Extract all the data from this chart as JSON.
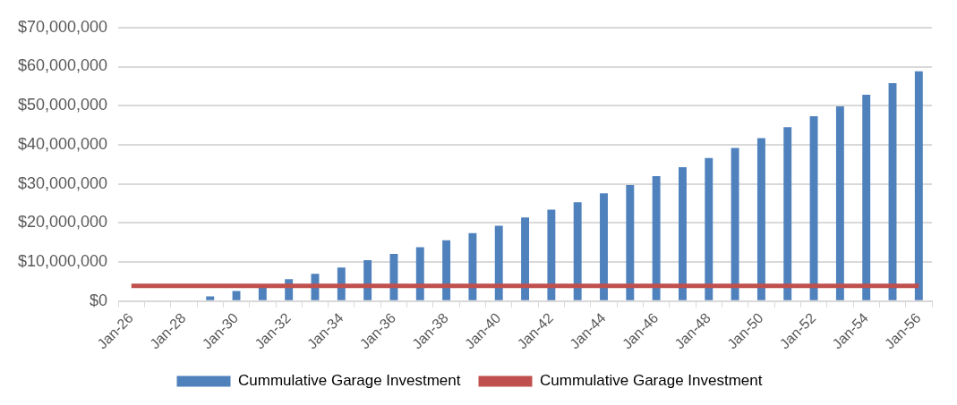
{
  "chart_data": {
    "type": "bar",
    "categories": [
      "Jan-26",
      null,
      "Jan-28",
      null,
      "Jan-30",
      null,
      "Jan-32",
      null,
      "Jan-34",
      null,
      "Jan-36",
      null,
      "Jan-38",
      null,
      "Jan-40",
      null,
      "Jan-42",
      null,
      "Jan-44",
      null,
      "Jan-46",
      null,
      "Jan-48",
      null,
      "Jan-50",
      null,
      "Jan-52",
      null,
      "Jan-54",
      null,
      "Jan-56"
    ],
    "series": [
      {
        "name": "Cummulative Garage Investment",
        "color": "#4f81bd",
        "values": [
          0,
          0,
          0,
          1200000.0,
          2600000.0,
          4000000.0,
          5600000.0,
          7000000.0,
          8600000.0,
          10500000.0,
          12100000.0,
          13800000.0,
          15600000.0,
          17400000.0,
          19300000.0,
          21400000.0,
          23400000.0,
          25300000.0,
          27600000.0,
          29700000.0,
          32000000.0,
          34300000.0,
          36600000.0,
          39200000.0,
          41700000.0,
          44500000.0,
          47300000.0,
          49800000.0,
          52800000.0,
          55800000.0,
          58800000.0
        ]
      },
      {
        "name": "Cummulative Garage Investment",
        "type": "line",
        "color": "#c0504d",
        "values": [
          3900000.0,
          3900000.0,
          3900000.0,
          3900000.0,
          3900000.0,
          3900000.0,
          3900000.0,
          3900000.0,
          3900000.0,
          3900000.0,
          3900000.0,
          3900000.0,
          3900000.0,
          3900000.0,
          3900000.0,
          3900000.0,
          3900000.0,
          3900000.0,
          3900000.0,
          3900000.0,
          3900000.0,
          3900000.0,
          3900000.0,
          3900000.0,
          3900000.0,
          3900000.0,
          3900000.0,
          3900000.0,
          3900000.0,
          3900000.0,
          3900000.0
        ]
      }
    ],
    "ylim": [
      0,
      70000000
    ],
    "yticks": [
      {
        "value": 0,
        "label": "$0"
      },
      {
        "value": 10000000,
        "label": "$10,000,000"
      },
      {
        "value": 20000000,
        "label": "$20,000,000"
      },
      {
        "value": 30000000,
        "label": "$30,000,000"
      },
      {
        "value": 40000000,
        "label": "$40,000,000"
      },
      {
        "value": 50000000,
        "label": "$50,000,000"
      },
      {
        "value": 60000000,
        "label": "$60,000,000"
      },
      {
        "value": 70000000,
        "label": "$70,000,000"
      }
    ],
    "grid": "y",
    "legend": "bottom",
    "marker": "none"
  }
}
